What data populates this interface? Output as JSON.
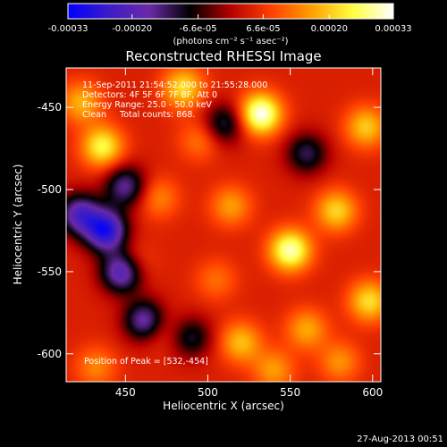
{
  "chart_data": {
    "type": "heatmap",
    "title": "Reconstructed RHESSI Image",
    "xlabel": "Heliocentric X (arcsec)",
    "ylabel": "Heliocentric Y (arcsec)",
    "xlim": [
      414,
      605
    ],
    "ylim": [
      -617,
      -426
    ],
    "x_ticks": [
      450,
      500,
      550,
      600
    ],
    "y_ticks": [
      -450,
      -500,
      -550,
      -600
    ],
    "colorbar": {
      "range": [
        -0.00033,
        0.00033
      ],
      "tick_values": [
        -0.00033,
        -0.0002,
        -6.6e-05,
        6.6e-05,
        0.0002,
        0.00033
      ],
      "tick_labels": [
        "-0.00033",
        "-0.00020",
        "-6.6e-05",
        "6.6e-05",
        "0.00020",
        "0.00033"
      ],
      "units": "(photons cm⁻² s⁻¹ asec⁻²)",
      "colormap": [
        "#0000ff",
        "#3b1cc8",
        "#6a2aa6",
        "#000000",
        "#b40000",
        "#ff4000",
        "#ffa000",
        "#ffff40",
        "#ffffff"
      ]
    },
    "annotations": [
      "11-Sep-2011 21:54:52.000 to 21:55:28.000",
      "Detectors: 4F 5F 6F 7F 8F, Att 0",
      "Energy Range: 25.0 - 50.0 keV",
      "Clean     Total counts: 868."
    ],
    "peak_label": "Position of Peak = [532,-454]",
    "peak": [
      532,
      -454
    ],
    "sources": [
      {
        "x": 532,
        "y": -454,
        "value": 0.00033
      },
      {
        "x": 550,
        "y": -537,
        "value": 0.0003
      },
      {
        "x": 436,
        "y": -474,
        "value": 0.00025
      },
      {
        "x": 485,
        "y": -438,
        "value": 0.00022
      },
      {
        "x": 423,
        "y": -447,
        "value": 0.00018
      },
      {
        "x": 578,
        "y": -513,
        "value": 0.00021
      },
      {
        "x": 596,
        "y": -462,
        "value": 0.0002
      },
      {
        "x": 598,
        "y": -568,
        "value": 0.00022
      },
      {
        "x": 514,
        "y": -510,
        "value": 0.00016
      },
      {
        "x": 520,
        "y": -593,
        "value": 0.00019
      },
      {
        "x": 560,
        "y": -585,
        "value": 0.00017
      },
      {
        "x": 470,
        "y": -505,
        "value": 0.00014
      },
      {
        "x": 455,
        "y": -545,
        "value": 0.00012
      },
      {
        "x": 432,
        "y": -608,
        "value": 0.00014
      },
      {
        "x": 540,
        "y": -610,
        "value": 0.00016
      },
      {
        "x": 580,
        "y": -605,
        "value": 0.00015
      },
      {
        "x": 495,
        "y": -470,
        "value": 0.00013
      },
      {
        "x": 505,
        "y": -555,
        "value": 0.00012
      },
      {
        "x": 470,
        "y": -585,
        "value": 0.00011
      },
      {
        "x": 438,
        "y": -525,
        "value": -0.00028
      },
      {
        "x": 448,
        "y": -550,
        "value": -0.00024
      },
      {
        "x": 462,
        "y": -580,
        "value": -0.0002
      },
      {
        "x": 422,
        "y": -515,
        "value": -0.0002
      },
      {
        "x": 560,
        "y": -478,
        "value": -0.00012
      },
      {
        "x": 510,
        "y": -460,
        "value": -0.00012
      },
      {
        "x": 450,
        "y": -498,
        "value": -0.00016
      },
      {
        "x": 490,
        "y": -590,
        "value": -0.0001
      }
    ]
  },
  "footer": {
    "timestamp": "27-Aug-2013 00:51"
  }
}
